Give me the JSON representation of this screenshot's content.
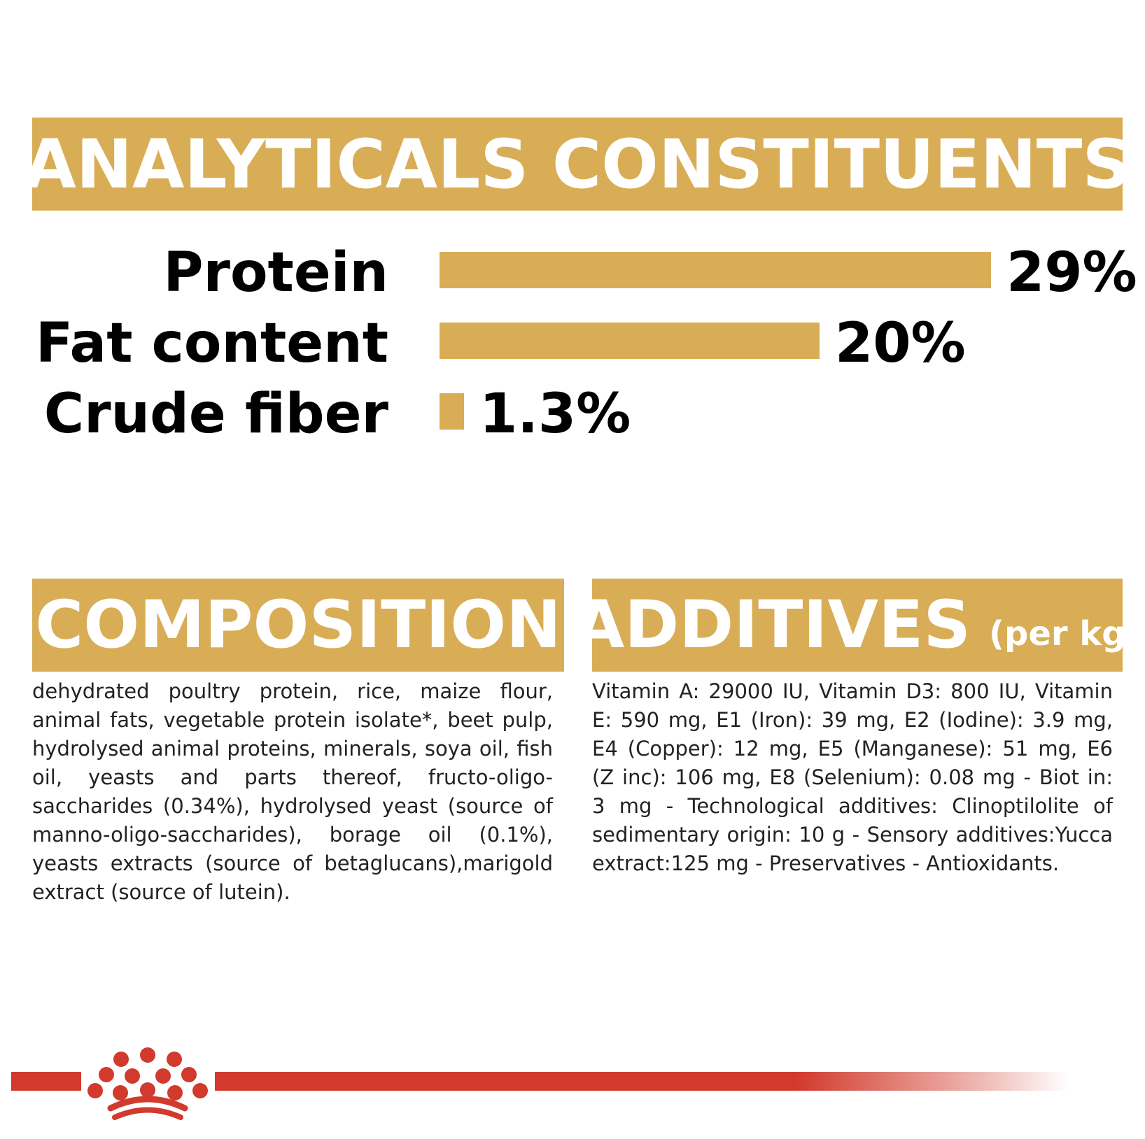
{
  "headers": {
    "analytical": "ANALYTICALS CONSTITUENTS",
    "composition": "COMPOSITION",
    "additives": "ADDITIVES",
    "additives_unit": "(per kg)"
  },
  "chart_data": {
    "type": "bar",
    "orientation": "horizontal",
    "title": "ANALYTICALS CONSTITUENTS",
    "categories": [
      "Protein",
      "Fat content",
      "Crude fiber"
    ],
    "values": [
      29,
      20,
      1.3
    ],
    "value_labels": [
      "29%",
      "20%",
      "1.3%"
    ],
    "unit": "%",
    "xlim": [
      0,
      29
    ],
    "grid": false,
    "color": "#d8ad55"
  },
  "composition_text": "dehydrated poultry protein, rice, maize flour, animal fats, vegetable protein isolate*, beet pulp, hydrolysed animal proteins, minerals, soya oil, fish oil, yeasts and parts thereof, fructo-oligo-saccharides (0.34%), hydrolysed yeast (source of manno-oligo-saccharides), borage oil (0.1%), yeasts extracts (source of betaglucans),marigold extract (source of lutein).",
  "additives_text": "Vitamin A: 29000 IU, Vitamin D3: 800 IU, Vitamin E: 590 mg, E1 (Iron): 39 mg, E2 (Iodine): 3.9 mg, E4 (Copper): 12 mg, E5 (Manganese): 51 mg, E6 (Z inc): 106 mg, E8 (Selenium): 0.08 mg - Biot in: 3 mg - Technological additives: Clinoptilolite of sedimentary origin: 10 g - Sensory additives:Yucca extract:125 mg - Preservatives - Antioxidants.",
  "colors": {
    "banner": "#d8ad55",
    "brand_red": "#d13a2c",
    "text": "#000000"
  },
  "icons": {
    "logo": "crown-logo-icon"
  }
}
